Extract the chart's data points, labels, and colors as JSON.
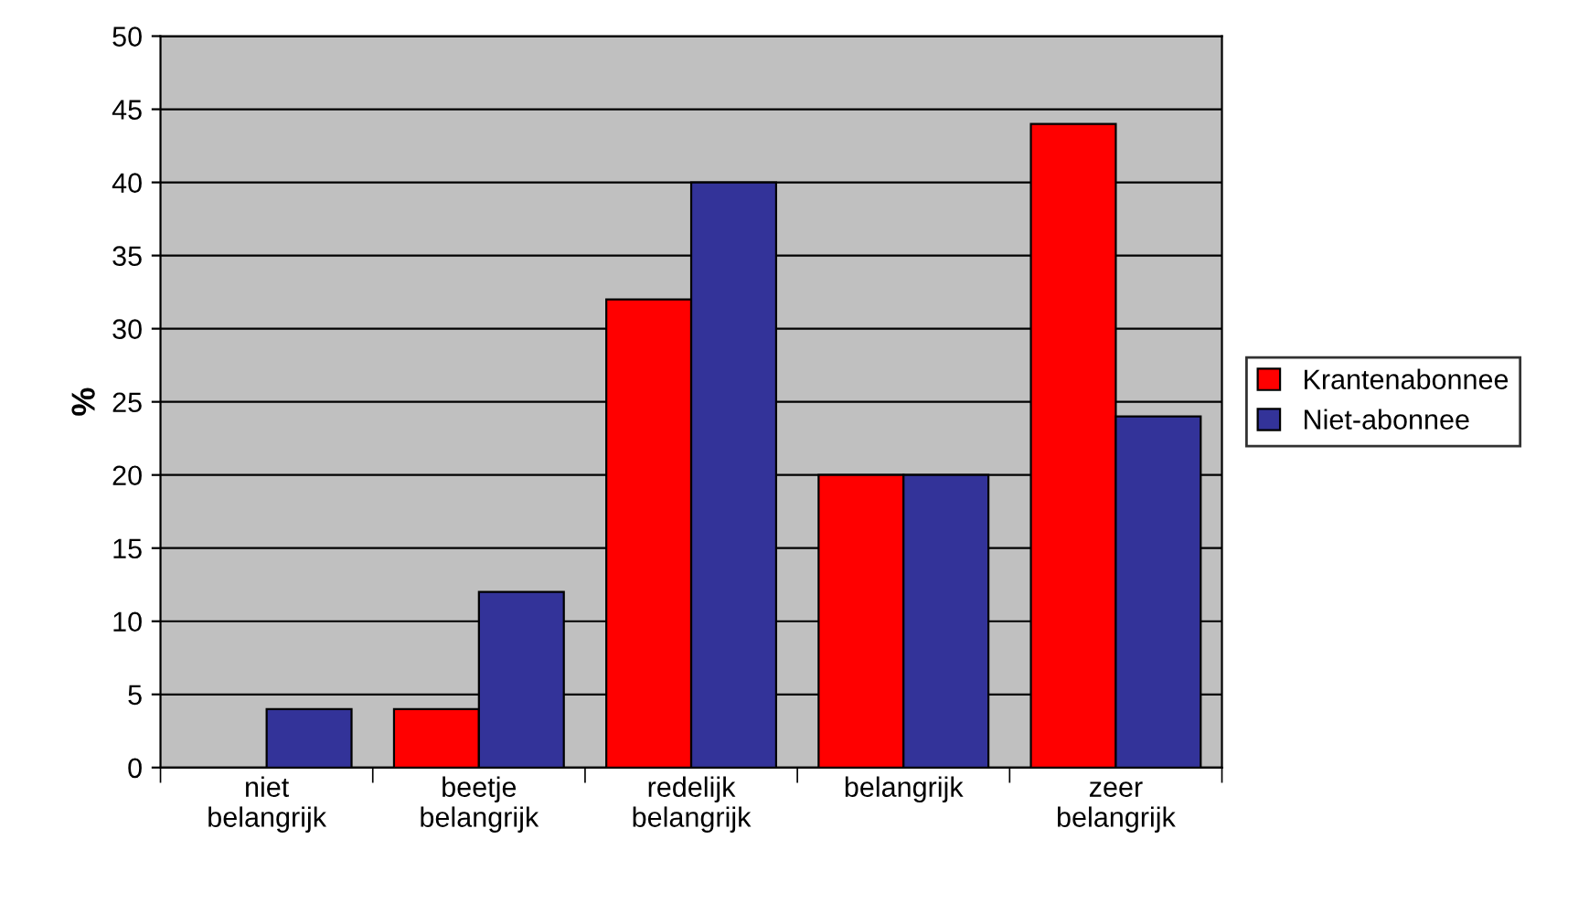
{
  "chart_data": {
    "type": "bar",
    "ylabel": "%",
    "categories": [
      "niet belangrijk",
      "beetje belangrijk",
      "redelijk belangrijk",
      "belangrijk",
      "zeer belangrijk"
    ],
    "series": [
      {
        "name": "Krantenabonnee",
        "color": "#ff0000",
        "values": [
          null,
          4,
          32,
          20,
          44
        ]
      },
      {
        "name": "Niet-abonnee",
        "color": "#333399",
        "values": [
          4,
          12,
          40,
          20,
          24
        ]
      }
    ],
    "ylim": [
      0,
      50
    ],
    "yticks": [
      0,
      5,
      10,
      15,
      20,
      25,
      30,
      35,
      40,
      45,
      50
    ],
    "grid": "y",
    "legend": "right"
  }
}
